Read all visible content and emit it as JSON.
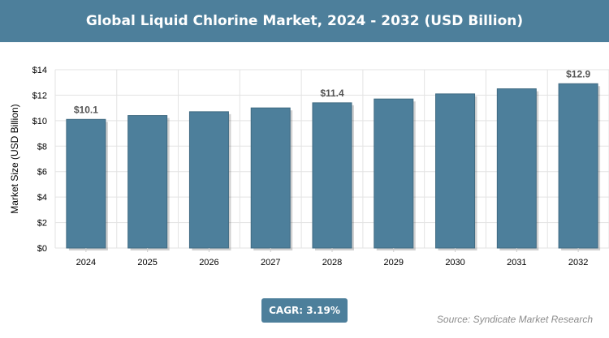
{
  "header": {
    "title": "Global Liquid Chlorine Market, 2024 - 2032 (USD Billion)"
  },
  "chart_data": {
    "type": "bar",
    "categories": [
      "2024",
      "2025",
      "2026",
      "2027",
      "2028",
      "2029",
      "2030",
      "2031",
      "2032"
    ],
    "values": [
      10.1,
      10.4,
      10.7,
      11.0,
      11.4,
      11.7,
      12.1,
      12.5,
      12.9
    ],
    "data_labels": [
      {
        "category": "2024",
        "text": "$10.1"
      },
      {
        "category": "2028",
        "text": "$11.4"
      },
      {
        "category": "2032",
        "text": "$12.9"
      }
    ],
    "ylabel": "Market Size (USD Billion)",
    "yticks": [
      "$0",
      "$2",
      "$4",
      "$6",
      "$8",
      "$10",
      "$12",
      "$14"
    ],
    "ylim": [
      0,
      14
    ],
    "grid": true,
    "bar_color": "#4d7f9b"
  },
  "footer": {
    "cagr": "CAGR: 3.19%",
    "source": "Source: Syndicate Market Research"
  }
}
